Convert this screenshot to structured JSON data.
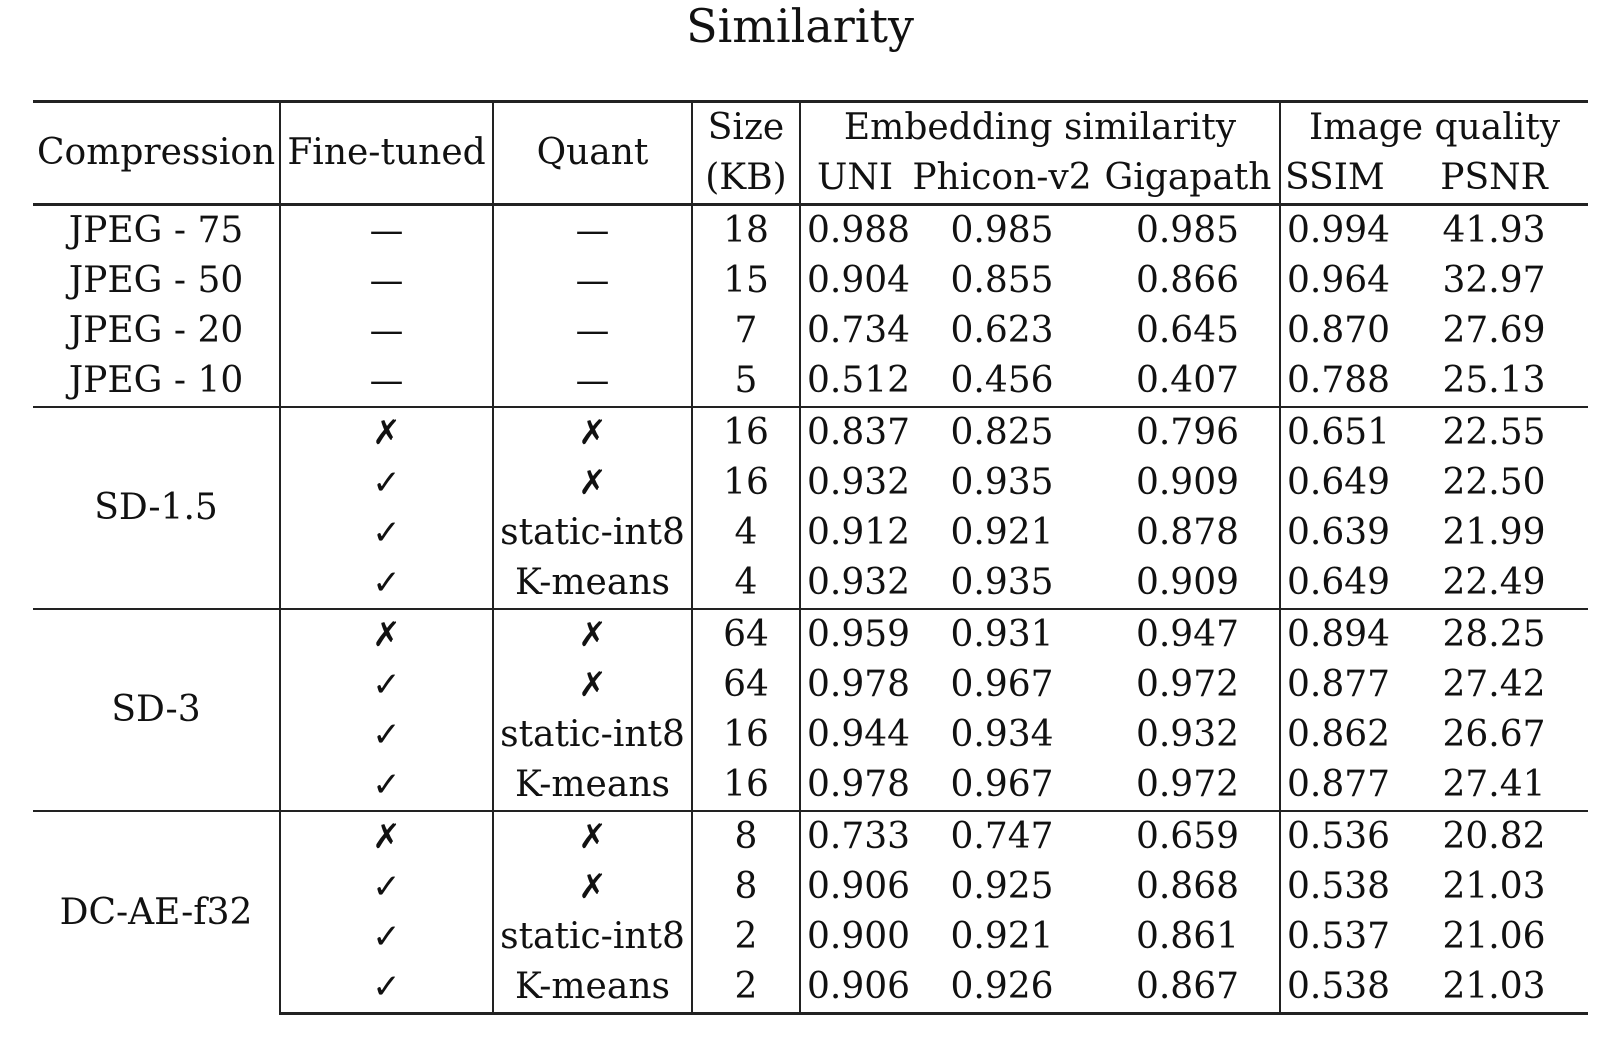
{
  "title": "Similarity",
  "table": {
    "headers": {
      "compression": "Compression",
      "fine_tuned": "Fine-tuned",
      "quant": "Quant",
      "size_top": "Size",
      "size_bottom": "(KB)",
      "embedding_group": "Embedding similarity",
      "image_quality_group": "Image quality",
      "uni": "UNI",
      "phicon": "Phicon-v2",
      "gigapath": "Gigapath",
      "ssim": "SSIM",
      "psnr": "PSNR"
    },
    "groups": [
      {
        "compression": "",
        "rows": [
          {
            "label": "JPEG - 75",
            "fine_tuned": "—",
            "quant": "—",
            "size": "18",
            "uni": "0.988",
            "phicon": "0.985",
            "gigapath": "0.985",
            "ssim": "0.994",
            "psnr": "41.93"
          },
          {
            "label": "JPEG - 50",
            "fine_tuned": "—",
            "quant": "—",
            "size": "15",
            "uni": "0.904",
            "phicon": "0.855",
            "gigapath": "0.866",
            "ssim": "0.964",
            "psnr": "32.97"
          },
          {
            "label": "JPEG - 20",
            "fine_tuned": "—",
            "quant": "—",
            "size": "7",
            "uni": "0.734",
            "phicon": "0.623",
            "gigapath": "0.645",
            "ssim": "0.870",
            "psnr": "27.69"
          },
          {
            "label": "JPEG - 10",
            "fine_tuned": "—",
            "quant": "—",
            "size": "5",
            "uni": "0.512",
            "phicon": "0.456",
            "gigapath": "0.407",
            "ssim": "0.788",
            "psnr": "25.13"
          }
        ]
      },
      {
        "compression": "SD-1.5",
        "rows": [
          {
            "label": "",
            "fine_tuned": "✗",
            "quant": "✗",
            "size": "16",
            "uni": "0.837",
            "phicon": "0.825",
            "gigapath": "0.796",
            "ssim": "0.651",
            "psnr": "22.55"
          },
          {
            "label": "",
            "fine_tuned": "✓",
            "quant": "✗",
            "size": "16",
            "uni": "0.932",
            "phicon": "0.935",
            "gigapath": "0.909",
            "ssim": "0.649",
            "psnr": "22.50"
          },
          {
            "label": "",
            "fine_tuned": "✓",
            "quant": "static-int8",
            "size": "4",
            "uni": "0.912",
            "phicon": "0.921",
            "gigapath": "0.878",
            "ssim": "0.639",
            "psnr": "21.99"
          },
          {
            "label": "",
            "fine_tuned": "✓",
            "quant": "K-means",
            "size": "4",
            "uni": "0.932",
            "phicon": "0.935",
            "gigapath": "0.909",
            "ssim": "0.649",
            "psnr": "22.49"
          }
        ]
      },
      {
        "compression": "SD-3",
        "rows": [
          {
            "label": "",
            "fine_tuned": "✗",
            "quant": "✗",
            "size": "64",
            "uni": "0.959",
            "phicon": "0.931",
            "gigapath": "0.947",
            "ssim": "0.894",
            "psnr": "28.25"
          },
          {
            "label": "",
            "fine_tuned": "✓",
            "quant": "✗",
            "size": "64",
            "uni": "0.978",
            "phicon": "0.967",
            "gigapath": "0.972",
            "ssim": "0.877",
            "psnr": "27.42"
          },
          {
            "label": "",
            "fine_tuned": "✓",
            "quant": "static-int8",
            "size": "16",
            "uni": "0.944",
            "phicon": "0.934",
            "gigapath": "0.932",
            "ssim": "0.862",
            "psnr": "26.67"
          },
          {
            "label": "",
            "fine_tuned": "✓",
            "quant": "K-means",
            "size": "16",
            "uni": "0.978",
            "phicon": "0.967",
            "gigapath": "0.972",
            "ssim": "0.877",
            "psnr": "27.41"
          }
        ]
      },
      {
        "compression": "DC-AE-f32",
        "rows": [
          {
            "label": "",
            "fine_tuned": "✗",
            "quant": "✗",
            "size": "8",
            "uni": "0.733",
            "phicon": "0.747",
            "gigapath": "0.659",
            "ssim": "0.536",
            "psnr": "20.82"
          },
          {
            "label": "",
            "fine_tuned": "✓",
            "quant": "✗",
            "size": "8",
            "uni": "0.906",
            "phicon": "0.925",
            "gigapath": "0.868",
            "ssim": "0.538",
            "psnr": "21.03"
          },
          {
            "label": "",
            "fine_tuned": "✓",
            "quant": "static-int8",
            "size": "2",
            "uni": "0.900",
            "phicon": "0.921",
            "gigapath": "0.861",
            "ssim": "0.537",
            "psnr": "21.06"
          },
          {
            "label": "",
            "fine_tuned": "✓",
            "quant": "K-means",
            "size": "2",
            "uni": "0.906",
            "phicon": "0.926",
            "gigapath": "0.867",
            "ssim": "0.538",
            "psnr": "21.03"
          }
        ]
      }
    ]
  }
}
